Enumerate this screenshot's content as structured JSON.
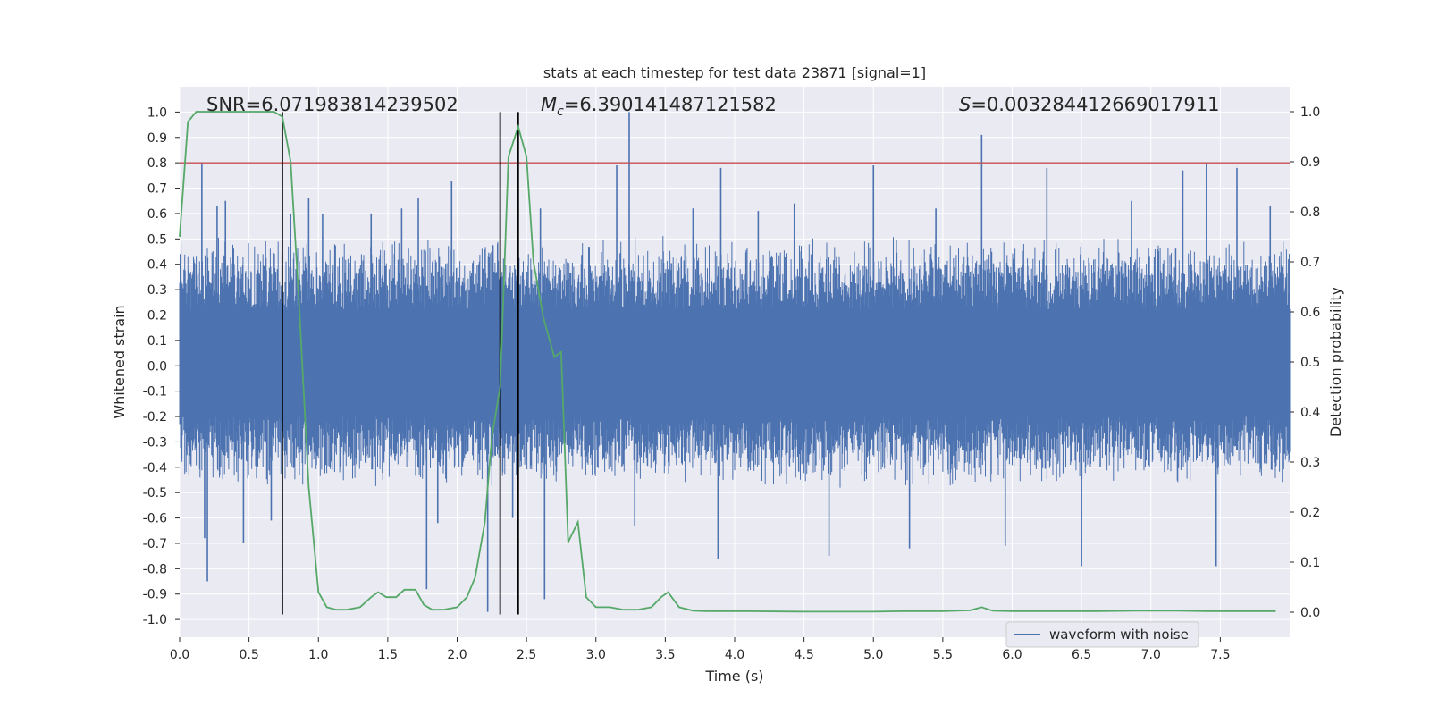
{
  "chart_data": {
    "type": "line",
    "title": "stats at each timestep for test data 23871 [signal=1]",
    "xlabel": "Time (s)",
    "ylabel": "Whitened strain",
    "y2label": "Detection probability",
    "xlim": [
      0,
      8
    ],
    "ylim": [
      -1.07,
      1.1
    ],
    "y2lim": [
      -0.05,
      1.05
    ],
    "x_ticks": [
      0.0,
      0.5,
      1.0,
      1.5,
      2.0,
      2.5,
      3.0,
      3.5,
      4.0,
      4.5,
      5.0,
      5.5,
      6.0,
      6.5,
      7.0,
      7.5
    ],
    "x_tick_labels": [
      "0.0",
      "0.5",
      "1.0",
      "1.5",
      "2.0",
      "2.5",
      "3.0",
      "3.5",
      "4.0",
      "4.5",
      "5.0",
      "5.5",
      "6.0",
      "6.5",
      "7.0",
      "7.5"
    ],
    "y_ticks": [
      1.0,
      0.9,
      0.8,
      0.7,
      0.6,
      0.5,
      0.4,
      0.3,
      0.2,
      0.1,
      0.0,
      -0.1,
      -0.2,
      -0.3,
      -0.4,
      -0.5,
      -0.6,
      -0.7,
      -0.8,
      -0.9,
      -1.0
    ],
    "y_tick_labels": [
      "1.0",
      "0.9",
      "0.8",
      "0.7",
      "0.6",
      "0.5",
      "0.4",
      "0.3",
      "0.2",
      "0.1",
      "0.0",
      "-0.1",
      "-0.2",
      "-0.3",
      "-0.4",
      "-0.5",
      "-0.6",
      "-0.7",
      "-0.8",
      "-0.9",
      "-1.0"
    ],
    "y2_ticks": [
      1.0,
      0.9,
      0.8,
      0.7,
      0.6,
      0.5,
      0.4,
      0.3,
      0.2,
      0.1,
      0.0
    ],
    "y2_tick_labels": [
      "1.0",
      "0.9",
      "0.8",
      "0.7",
      "0.6",
      "0.5",
      "0.4",
      "0.3",
      "0.2",
      "0.1",
      "0.0"
    ],
    "annotations": {
      "snr": "SNR=6.071983814239502",
      "mc_symbol": "M",
      "mc_subscript": "c",
      "mc_value": "=6.390141487121582",
      "s_symbol": "S",
      "s_value": "=0.003284412669017911"
    },
    "legend": {
      "label": "waveform with noise",
      "placement": "lower-right"
    },
    "threshold": {
      "value": 0.8,
      "axis": "left",
      "color": "#c44e52"
    },
    "vlines": [
      0.74,
      2.31,
      2.44
    ],
    "vline_range": [
      -0.98,
      1.0
    ],
    "series": [
      {
        "name": "waveform with noise",
        "axis": "left",
        "color": "#4c72b0",
        "kind": "noise-strain",
        "time_range": [
          0,
          8
        ],
        "typical_extent": [
          -0.42,
          0.45
        ],
        "dense_band": [
          -0.2,
          0.22
        ]
      },
      {
        "name": "Detection probability",
        "axis": "right",
        "color": "#55a868",
        "x": [
          0.0,
          0.06,
          0.12,
          0.2,
          0.3,
          0.4,
          0.5,
          0.6,
          0.68,
          0.74,
          0.8,
          0.86,
          0.93,
          1.0,
          1.06,
          1.13,
          1.2,
          1.3,
          1.38,
          1.43,
          1.49,
          1.56,
          1.62,
          1.7,
          1.76,
          1.82,
          1.9,
          2.0,
          2.07,
          2.13,
          2.2,
          2.25,
          2.31,
          2.37,
          2.44,
          2.5,
          2.55,
          2.62,
          2.7,
          2.75,
          2.8,
          2.87,
          2.93,
          3.0,
          3.1,
          3.2,
          3.3,
          3.4,
          3.47,
          3.52,
          3.6,
          3.7,
          3.8,
          4.0,
          4.1,
          4.5,
          5.0,
          5.2,
          5.5,
          5.7,
          5.78,
          5.86,
          6.0,
          6.3,
          6.6,
          6.9,
          7.0,
          7.2,
          7.4,
          7.5,
          7.9
        ],
        "values": [
          0.75,
          0.98,
          1.0,
          1.0,
          1.0,
          1.0,
          1.0,
          1.0,
          1.0,
          0.99,
          0.9,
          0.62,
          0.25,
          0.04,
          0.01,
          0.005,
          0.005,
          0.01,
          0.03,
          0.04,
          0.03,
          0.03,
          0.045,
          0.045,
          0.015,
          0.005,
          0.005,
          0.01,
          0.03,
          0.07,
          0.18,
          0.35,
          0.45,
          0.91,
          0.97,
          0.91,
          0.7,
          0.59,
          0.51,
          0.52,
          0.14,
          0.18,
          0.03,
          0.01,
          0.01,
          0.005,
          0.005,
          0.01,
          0.03,
          0.04,
          0.01,
          0.003,
          0.002,
          0.002,
          0.002,
          0.001,
          0.001,
          0.002,
          0.002,
          0.004,
          0.01,
          0.003,
          0.002,
          0.002,
          0.002,
          0.003,
          0.003,
          0.003,
          0.002,
          0.002,
          0.002
        ]
      }
    ],
    "spikes": [
      {
        "t": 0.16,
        "v": 0.8
      },
      {
        "t": 0.2,
        "v": -0.85
      },
      {
        "t": 0.18,
        "v": -0.68
      },
      {
        "t": 0.27,
        "v": 0.63
      },
      {
        "t": 0.33,
        "v": 0.65
      },
      {
        "t": 0.46,
        "v": -0.7
      },
      {
        "t": 0.66,
        "v": -0.61
      },
      {
        "t": 0.8,
        "v": 0.6
      },
      {
        "t": 0.93,
        "v": 0.66
      },
      {
        "t": 1.03,
        "v": 0.6
      },
      {
        "t": 1.38,
        "v": 0.6
      },
      {
        "t": 1.6,
        "v": 0.62
      },
      {
        "t": 1.72,
        "v": 0.66
      },
      {
        "t": 1.78,
        "v": -0.88
      },
      {
        "t": 1.86,
        "v": -0.62
      },
      {
        "t": 1.96,
        "v": 0.73
      },
      {
        "t": 2.22,
        "v": -0.97
      },
      {
        "t": 2.4,
        "v": -0.6
      },
      {
        "t": 2.6,
        "v": 0.62
      },
      {
        "t": 2.63,
        "v": -0.92
      },
      {
        "t": 3.15,
        "v": 0.79
      },
      {
        "t": 3.24,
        "v": 1.0
      },
      {
        "t": 3.28,
        "v": -0.63
      },
      {
        "t": 3.7,
        "v": 0.62
      },
      {
        "t": 3.9,
        "v": 0.78
      },
      {
        "t": 3.88,
        "v": -0.76
      },
      {
        "t": 4.17,
        "v": 0.61
      },
      {
        "t": 4.43,
        "v": 0.64
      },
      {
        "t": 4.68,
        "v": -0.75
      },
      {
        "t": 5.0,
        "v": 0.79
      },
      {
        "t": 5.26,
        "v": -0.72
      },
      {
        "t": 5.45,
        "v": 0.62
      },
      {
        "t": 5.78,
        "v": 0.91
      },
      {
        "t": 5.95,
        "v": -0.71
      },
      {
        "t": 6.25,
        "v": 0.78
      },
      {
        "t": 6.5,
        "v": -0.79
      },
      {
        "t": 6.86,
        "v": 0.65
      },
      {
        "t": 7.23,
        "v": 0.77
      },
      {
        "t": 7.4,
        "v": 0.8
      },
      {
        "t": 7.47,
        "v": -0.79
      },
      {
        "t": 7.62,
        "v": 0.78
      },
      {
        "t": 7.86,
        "v": 0.63
      }
    ]
  }
}
